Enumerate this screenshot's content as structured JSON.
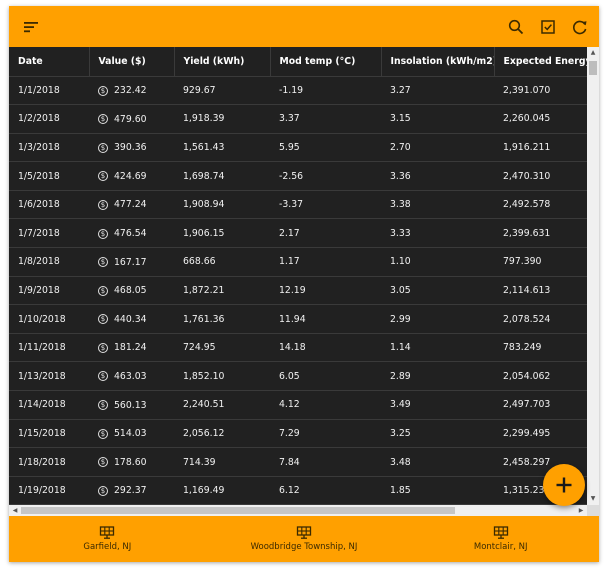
{
  "toolbar": {
    "menu_icon": "filter-list-icon",
    "actions": [
      "search-icon",
      "checkbox-icon",
      "refresh-icon"
    ]
  },
  "table": {
    "columns": [
      "Date",
      "Value ($)",
      "Yield (kWh)",
      "Mod temp (°C)",
      "Insolation (kWh/m2)",
      "Expected Energy"
    ],
    "rows": [
      [
        "1/1/2018",
        "232.42",
        "929.67",
        "-1.19",
        "3.27",
        "2,391.070"
      ],
      [
        "1/2/2018",
        "479.60",
        "1,918.39",
        "3.37",
        "3.15",
        "2,260.045"
      ],
      [
        "1/3/2018",
        "390.36",
        "1,561.43",
        "5.95",
        "2.70",
        "1,916.211"
      ],
      [
        "1/5/2018",
        "424.69",
        "1,698.74",
        "-2.56",
        "3.36",
        "2,470.310"
      ],
      [
        "1/6/2018",
        "477.24",
        "1,908.94",
        "-3.37",
        "3.38",
        "2,492.578"
      ],
      [
        "1/7/2018",
        "476.54",
        "1,906.15",
        "2.17",
        "3.33",
        "2,399.631"
      ],
      [
        "1/8/2018",
        "167.17",
        "668.66",
        "1.17",
        "1.10",
        "797.390"
      ],
      [
        "1/9/2018",
        "468.05",
        "1,872.21",
        "12.19",
        "3.05",
        "2,114.613"
      ],
      [
        "1/10/2018",
        "440.34",
        "1,761.36",
        "11.94",
        "2.99",
        "2,078.524"
      ],
      [
        "1/11/2018",
        "181.24",
        "724.95",
        "14.18",
        "1.14",
        "783.249"
      ],
      [
        "1/13/2018",
        "463.03",
        "1,852.10",
        "6.05",
        "2.89",
        "2,054.062"
      ],
      [
        "1/14/2018",
        "560.13",
        "2,240.51",
        "4.12",
        "3.49",
        "2,497.703"
      ],
      [
        "1/15/2018",
        "514.03",
        "2,056.12",
        "7.29",
        "3.25",
        "2,299.495"
      ],
      [
        "1/18/2018",
        "178.60",
        "714.39",
        "7.84",
        "3.48",
        "2,458.297"
      ],
      [
        "1/19/2018",
        "292.37",
        "1,169.49",
        "6.12",
        "1.85",
        "1,315.236"
      ]
    ]
  },
  "fab": {
    "icon": "plus-icon"
  },
  "bottom_nav": [
    {
      "icon": "solar-panel-icon",
      "label": "Garfield, NJ"
    },
    {
      "icon": "solar-panel-icon",
      "label": "Woodbridge Township, NJ"
    },
    {
      "icon": "solar-panel-icon",
      "label": "Montclair, NJ"
    }
  ],
  "colors": {
    "accent": "#ffa000",
    "table_bg": "#212121",
    "text": "#f2f2f2"
  }
}
